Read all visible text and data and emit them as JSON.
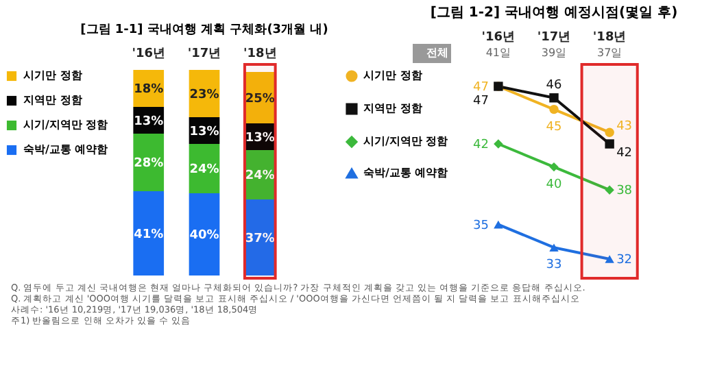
{
  "chart_data": [
    {
      "type": "bar",
      "title": "[그림 1-1] 국내여행 계획 구체화(3개월 내)",
      "categories": [
        "'16년",
        "'17년",
        "'18년"
      ],
      "stacked": true,
      "legend": "left",
      "tick_labels": "x",
      "series": [
        {
          "name": "숙박/교통 예약함",
          "color": "#1a6ef2",
          "values": [
            41,
            40,
            37
          ],
          "value_labels": [
            "41%",
            "40%",
            "37%"
          ]
        },
        {
          "name": "시기/지역만 정함",
          "color": "#3dba30",
          "values": [
            28,
            24,
            24
          ],
          "value_labels": [
            "28%",
            "24%",
            "24%"
          ]
        },
        {
          "name": "지역만 정함",
          "color": "#050505",
          "values": [
            13,
            13,
            13
          ],
          "value_labels": [
            "13%",
            "13%",
            "13%"
          ]
        },
        {
          "name": "시기만 정함",
          "color": "#f5b80a",
          "values": [
            18,
            23,
            25
          ],
          "value_labels": [
            "18%",
            "23%",
            "25%"
          ]
        }
      ],
      "bands": [
        {
          "axis": "x",
          "from": "'18년",
          "to": "'18년",
          "color": "#e02a2a"
        }
      ],
      "annotations": [
        "Q. 염두에 두고 계신 국내여행은 현재 얼마나 구체화되어 있습니까? 가장 구체적인 계획을 갖고 있는 여행을 기준으로 응답해 주십시오.",
        "Q. 계획하고 계신 'OOO여행 시기를 달력을 보고 표시해 주십시오 / 'OOO여행을 가신다면 언제쯤이 될 지 달력을 보고 표시해주십시오",
        "사례수: '16년 10,219명, '17년 19,036명, '18년 18,504명",
        "주1) 반올림으로 인해 오차가 있을 수 있음"
      ]
    },
    {
      "type": "line",
      "title": "[그림 1-2] 국내여행 예정시점(몇일 후)",
      "categories": [
        "'16년",
        "'17년",
        "'18년"
      ],
      "legend": "left",
      "tick_labels": "x",
      "data_labels": true,
      "series": [
        {
          "name": "시기만 정함",
          "color": "#f0b323",
          "marker": "circle",
          "values": [
            47,
            45,
            43
          ]
        },
        {
          "name": "지역만 정함",
          "color": "#111111",
          "marker": "square",
          "values": [
            47,
            46,
            42
          ]
        },
        {
          "name": "시기/지역만 정함",
          "color": "#3cb93c",
          "marker": "diamond",
          "values": [
            42,
            40,
            38
          ]
        },
        {
          "name": "숙박/교통 예약함",
          "color": "#1f6fe0",
          "marker": "triangle",
          "values": [
            35,
            33,
            32
          ]
        }
      ],
      "bands": [
        {
          "axis": "x",
          "from": "'18년",
          "to": "'18년",
          "color": "#e02a2a"
        }
      ],
      "annotations": [
        "전체",
        "41일",
        "39일",
        "37일"
      ]
    }
  ]
}
